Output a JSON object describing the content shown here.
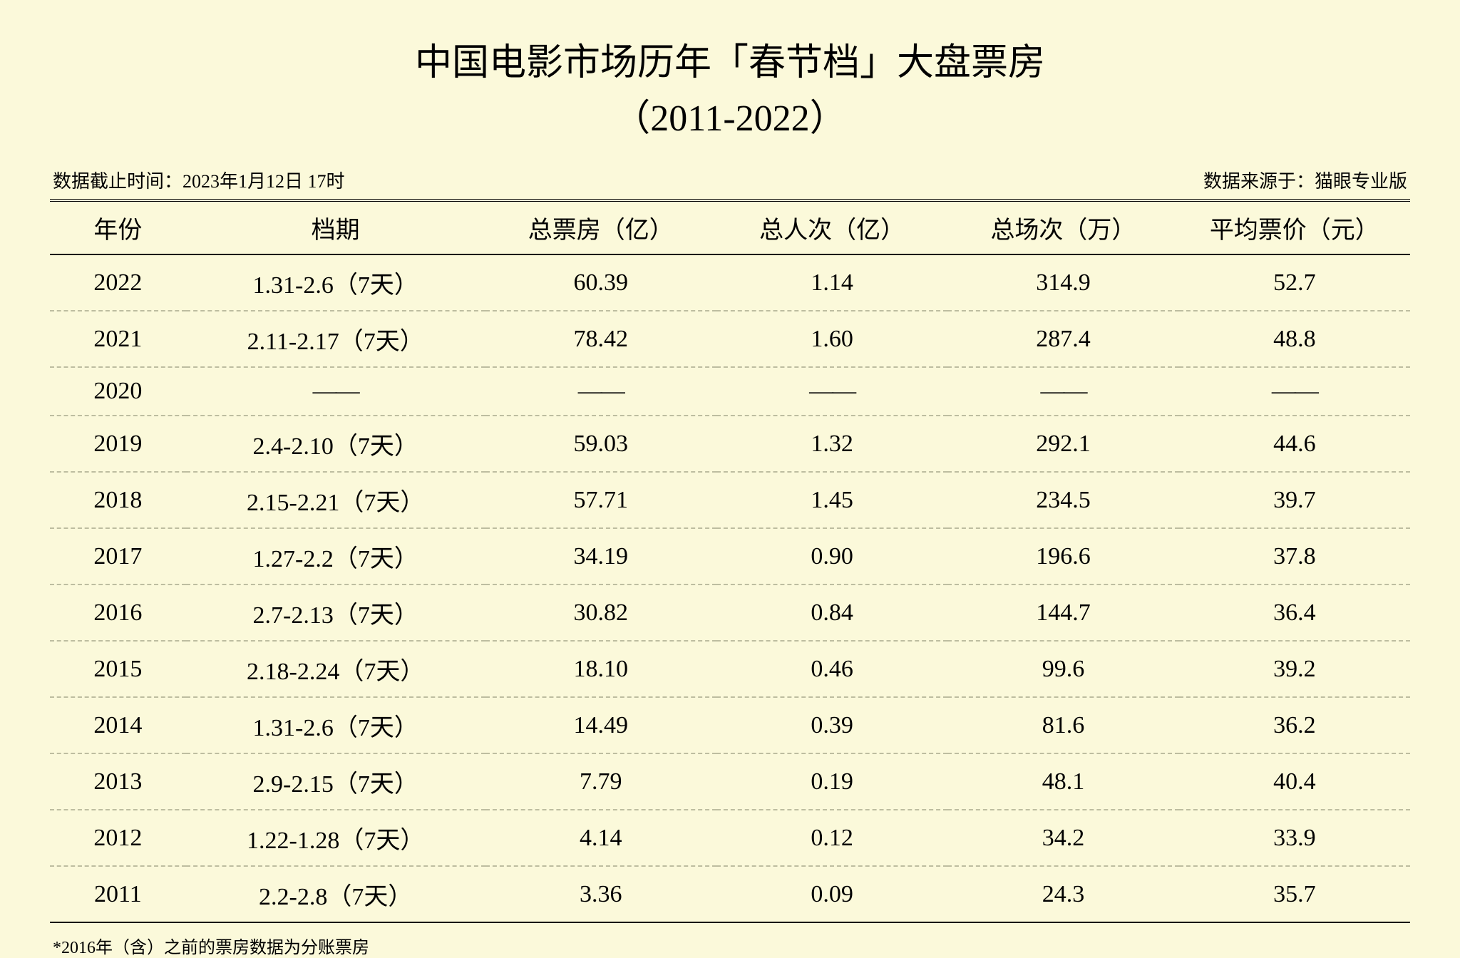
{
  "title_line1": "中国电影市场历年「春节档」大盘票房",
  "title_line2": "（2011-2022）",
  "meta_left": "数据截止时间：2023年1月12日 17时",
  "meta_right": "数据来源于：猫眼专业版",
  "footnote": "*2016年（含）之前的票房数据为分账票房",
  "table": {
    "type": "table",
    "background_color": "#fbf9da",
    "text_color": "#000000",
    "border_color": "#000000",
    "dashed_border_color": "#bdbda0",
    "title_fontsize": 52,
    "header_fontsize": 34,
    "cell_fontsize": 34,
    "meta_fontsize": 26,
    "footnote_fontsize": 24,
    "columns": [
      {
        "key": "year",
        "label": "年份",
        "width_pct": 10,
        "align": "center"
      },
      {
        "key": "period",
        "label": "档期",
        "width_pct": 22,
        "align": "center"
      },
      {
        "key": "box_office",
        "label": "总票房（亿）",
        "width_pct": 17,
        "align": "center"
      },
      {
        "key": "attendance",
        "label": "总人次（亿）",
        "width_pct": 17,
        "align": "center"
      },
      {
        "key": "screenings",
        "label": "总场次（万）",
        "width_pct": 17,
        "align": "center"
      },
      {
        "key": "avg_price",
        "label": "平均票价（元）",
        "width_pct": 17,
        "align": "center"
      }
    ],
    "rows": [
      {
        "year": "2022",
        "period": "1.31-2.6（7天）",
        "box_office": "60.39",
        "attendance": "1.14",
        "screenings": "314.9",
        "avg_price": "52.7"
      },
      {
        "year": "2021",
        "period": "2.11-2.17（7天）",
        "box_office": "78.42",
        "attendance": "1.60",
        "screenings": "287.4",
        "avg_price": "48.8"
      },
      {
        "year": "2020",
        "period": "——",
        "box_office": "——",
        "attendance": "——",
        "screenings": "——",
        "avg_price": "——"
      },
      {
        "year": "2019",
        "period": "2.4-2.10（7天）",
        "box_office": "59.03",
        "attendance": "1.32",
        "screenings": "292.1",
        "avg_price": "44.6"
      },
      {
        "year": "2018",
        "period": "2.15-2.21（7天）",
        "box_office": "57.71",
        "attendance": "1.45",
        "screenings": "234.5",
        "avg_price": "39.7"
      },
      {
        "year": "2017",
        "period": "1.27-2.2（7天）",
        "box_office": "34.19",
        "attendance": "0.90",
        "screenings": "196.6",
        "avg_price": "37.8"
      },
      {
        "year": "2016",
        "period": "2.7-2.13（7天）",
        "box_office": "30.82",
        "attendance": "0.84",
        "screenings": "144.7",
        "avg_price": "36.4"
      },
      {
        "year": "2015",
        "period": "2.18-2.24（7天）",
        "box_office": "18.10",
        "attendance": "0.46",
        "screenings": "99.6",
        "avg_price": "39.2"
      },
      {
        "year": "2014",
        "period": "1.31-2.6（7天）",
        "box_office": "14.49",
        "attendance": "0.39",
        "screenings": "81.6",
        "avg_price": "36.2"
      },
      {
        "year": "2013",
        "period": "2.9-2.15（7天）",
        "box_office": "7.79",
        "attendance": "0.19",
        "screenings": "48.1",
        "avg_price": "40.4"
      },
      {
        "year": "2012",
        "period": "1.22-1.28（7天）",
        "box_office": "4.14",
        "attendance": "0.12",
        "screenings": "34.2",
        "avg_price": "33.9"
      },
      {
        "year": "2011",
        "period": "2.2-2.8（7天）",
        "box_office": "3.36",
        "attendance": "0.09",
        "screenings": "24.3",
        "avg_price": "35.7"
      }
    ]
  }
}
